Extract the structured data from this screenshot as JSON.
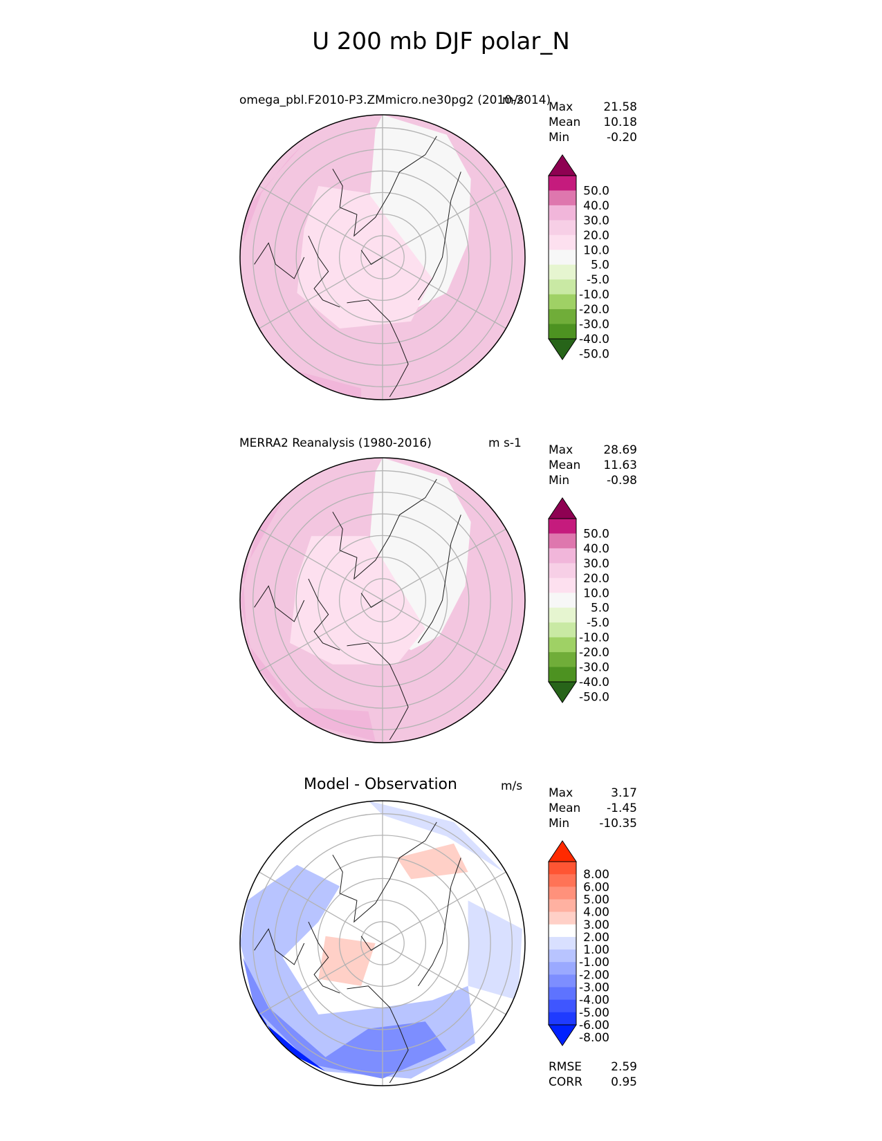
{
  "figure_title": "U 200 mb DJF polar_N",
  "colors": {
    "map_outline": "#000000",
    "grid": "#b3b3b3",
    "coast": "#1a1a1a"
  },
  "chart_data": [
    {
      "type": "heatmap",
      "projection": "north-polar-stereographic",
      "panel": "test",
      "title_left": "omega_pbl.F2010-P3.ZMmicro.ne30pg2 (2010-2014)",
      "title_right": "m/s",
      "stats": [
        {
          "label": "Max",
          "value": "21.58"
        },
        {
          "label": "Mean",
          "value": "10.18"
        },
        {
          "label": "Min",
          "value": "-0.20"
        }
      ],
      "colorbar": {
        "levels": [
          "50.0",
          "40.0",
          "30.0",
          "20.0",
          "10.0",
          "5.0",
          "-5.0",
          "-10.0",
          "-20.0",
          "-30.0",
          "-40.0",
          "-50.0"
        ],
        "colors": [
          "#8e0152",
          "#c51b7d",
          "#de77ae",
          "#f1b6da",
          "#f7cfe6",
          "#fde0ef",
          "#f7f7f7",
          "#e6f5d0",
          "#c9e9a4",
          "#9fd165",
          "#70ad39",
          "#4d9221",
          "#276419"
        ]
      },
      "dominant_fill": "#f3c6e0",
      "field_features": [
        {
          "color": "#f7f7f7",
          "region": "central Arctic to Pacific sector"
        },
        {
          "color": "#fde0ef",
          "region": "ring around the pole"
        },
        {
          "color": "#e895c2",
          "region": "north Atlantic and south-west edge"
        }
      ]
    },
    {
      "type": "heatmap",
      "projection": "north-polar-stereographic",
      "panel": "reference",
      "title_left": "MERRA2 Reanalysis (1980-2016)",
      "title_right": "m s-1",
      "stats": [
        {
          "label": "Max",
          "value": "28.69"
        },
        {
          "label": "Mean",
          "value": "11.63"
        },
        {
          "label": "Min",
          "value": "-0.98"
        }
      ],
      "colorbar": {
        "levels": [
          "50.0",
          "40.0",
          "30.0",
          "20.0",
          "10.0",
          "5.0",
          "-5.0",
          "-10.0",
          "-20.0",
          "-30.0",
          "-40.0",
          "-50.0"
        ],
        "colors": [
          "#8e0152",
          "#c51b7d",
          "#de77ae",
          "#f1b6da",
          "#f7cfe6",
          "#fde0ef",
          "#f7f7f7",
          "#e6f5d0",
          "#c9e9a4",
          "#9fd165",
          "#70ad39",
          "#4d9221",
          "#276419"
        ]
      },
      "dominant_fill": "#f3c6e0",
      "field_features": [
        {
          "color": "#f7f7f7",
          "region": "central Arctic to Pacific sector"
        },
        {
          "color": "#fde0ef",
          "region": "ring around the pole"
        },
        {
          "color": "#e895c2",
          "region": "north Atlantic jet and south-west edge"
        }
      ]
    },
    {
      "type": "heatmap",
      "projection": "north-polar-stereographic",
      "panel": "difference",
      "title_center": "Model - Observation",
      "title_right": "m/s",
      "stats": [
        {
          "label": "Max",
          "value": "3.17"
        },
        {
          "label": "Mean",
          "value": "-1.45"
        },
        {
          "label": "Min",
          "value": "-10.35"
        }
      ],
      "colorbar": {
        "levels": [
          "8.00",
          "6.00",
          "5.00",
          "4.00",
          "3.00",
          "2.00",
          "1.00",
          "-1.00",
          "-2.00",
          "-3.00",
          "-4.00",
          "-5.00",
          "-6.00",
          "-8.00"
        ],
        "colors": [
          "#ff2a00",
          "#ff5533",
          "#ff7356",
          "#ff917b",
          "#ffb1a1",
          "#ffd0c7",
          "#ffffff",
          "#d9e0ff",
          "#b8c4ff",
          "#9aa9ff",
          "#7d8eff",
          "#5e73ff",
          "#3f56ff",
          "#1f3bff",
          "#0021ff"
        ]
      },
      "dominant_fill": "#ffffff",
      "field_features": [
        {
          "color": "#0021ff",
          "region": "south-west edge (strongest negative)"
        },
        {
          "color": "#7d8eff",
          "region": "western and southern band"
        },
        {
          "color": "#d9e0ff",
          "region": "north rim and eastern sector"
        },
        {
          "color": "#ffd0c7",
          "region": "small positive patches near Europe and Siberia"
        }
      ],
      "metrics": [
        {
          "label": "RMSE",
          "value": "2.59"
        },
        {
          "label": "CORR",
          "value": "0.95"
        }
      ]
    }
  ]
}
